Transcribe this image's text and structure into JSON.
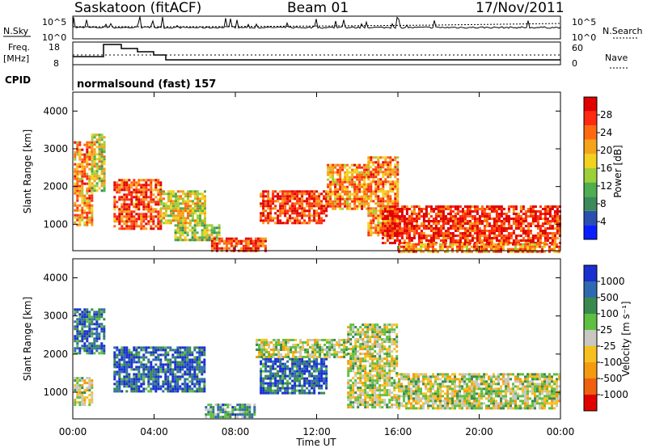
{
  "header": {
    "site": "Saskatoon (fitACF)",
    "beam": "Beam 01",
    "date": "17/Nov/2011"
  },
  "status_panels": {
    "nsky_label": "N.Sky",
    "nsky_ticks": [
      "10^5",
      "10^0"
    ],
    "nsearch_label": "N.Search",
    "nsearch_ticks": [
      "10^5",
      "10^0"
    ],
    "freq_label": "Freq.",
    "freq_unit": "[MHz]",
    "freq_ticks": [
      "18",
      "8"
    ],
    "nave_label": "Nave",
    "nave_ticks": [
      "60",
      "0"
    ],
    "cpid_label": "CPID",
    "cpid_value": "normalsound (fast) 157"
  },
  "chart_data": [
    {
      "type": "heatmap",
      "name": "power",
      "ylabel": "Slant Range [km]",
      "yticks": [
        "1000",
        "2000",
        "3000",
        "4000"
      ],
      "ylim": [
        300,
        4500
      ],
      "xlim": [
        0,
        24
      ],
      "colorbar": {
        "label": "Power [dB]",
        "ticks": [
          "4",
          "8",
          "12",
          "16",
          "20",
          "24",
          "28"
        ],
        "colors": [
          "#0a1eff",
          "#2b4fb0",
          "#3b8a57",
          "#4fae4f",
          "#9ccf3a",
          "#f2d21f",
          "#f5a31a",
          "#ff6a10",
          "#ff2a10",
          "#e00000"
        ]
      },
      "bands": [
        {
          "t0": 0.05,
          "t1": 0.9,
          "r0": 1000,
          "r1": 3200,
          "level": 0.7
        },
        {
          "t0": 0.9,
          "t1": 1.5,
          "r0": 1900,
          "r1": 3400,
          "level": 0.5
        },
        {
          "t0": 2.0,
          "t1": 4.3,
          "r0": 900,
          "r1": 2200,
          "level": 0.8
        },
        {
          "t0": 4.3,
          "t1": 6.5,
          "r0": 1000,
          "r1": 1900,
          "level": 0.55
        },
        {
          "t0": 5.0,
          "t1": 7.2,
          "r0": 550,
          "r1": 1000,
          "level": 0.45
        },
        {
          "t0": 6.8,
          "t1": 9.5,
          "r0": 320,
          "r1": 650,
          "level": 0.85
        },
        {
          "t0": 9.2,
          "t1": 12.5,
          "r0": 1000,
          "r1": 1900,
          "level": 0.85
        },
        {
          "t0": 12.5,
          "t1": 14.5,
          "r0": 1400,
          "r1": 2600,
          "level": 0.7
        },
        {
          "t0": 14.5,
          "t1": 16.0,
          "r0": 700,
          "r1": 2800,
          "level": 0.7
        },
        {
          "t0": 15.2,
          "t1": 24,
          "r0": 500,
          "r1": 1500,
          "level": 0.88
        },
        {
          "t0": 16.0,
          "t1": 24,
          "r0": 300,
          "r1": 500,
          "level": 0.7
        }
      ]
    },
    {
      "type": "heatmap",
      "name": "velocity",
      "ylabel": "Slant Range [km]",
      "yticks": [
        "1000",
        "2000",
        "3000",
        "4000"
      ],
      "ylim": [
        300,
        4500
      ],
      "xlim": [
        0,
        24
      ],
      "xticks": [
        "00:00",
        "04:00",
        "08:00",
        "12:00",
        "16:00",
        "20:00",
        "00:00"
      ],
      "xlabel": "Time UT",
      "colorbar": {
        "label": "Velocity [m s⁻¹]",
        "ticks": [
          "1000",
          "500",
          "100",
          "25",
          "-25",
          "-100",
          "-500",
          "-1000"
        ],
        "colors": [
          "#1a2fd0",
          "#2f6ab0",
          "#3a8a50",
          "#5fbf40",
          "#c8c8c0",
          "#f6c020",
          "#f59a10",
          "#f06010",
          "#e00000"
        ]
      },
      "bands": [
        {
          "t0": 0.05,
          "t1": 0.9,
          "r0": 700,
          "r1": 1400,
          "level": 0.5
        },
        {
          "t0": 0.05,
          "t1": 1.5,
          "r0": 2000,
          "r1": 3200,
          "level": 0.2
        },
        {
          "t0": 2.0,
          "t1": 6.5,
          "r0": 1000,
          "r1": 2200,
          "level": 0.15
        },
        {
          "t0": 6.5,
          "t1": 9.0,
          "r0": 320,
          "r1": 700,
          "level": 0.3
        },
        {
          "t0": 9.2,
          "t1": 12.5,
          "r0": 1000,
          "r1": 1900,
          "level": 0.15
        },
        {
          "t0": 9.0,
          "t1": 13.5,
          "r0": 1900,
          "r1": 2400,
          "level": 0.5
        },
        {
          "t0": 13.5,
          "t1": 16.0,
          "r0": 600,
          "r1": 2800,
          "level": 0.5
        },
        {
          "t0": 16.0,
          "t1": 24,
          "r0": 600,
          "r1": 1500,
          "level": 0.5
        }
      ]
    }
  ],
  "colors": {
    "axis": "#000000",
    "ground_scatter": "#c8c8c0"
  }
}
